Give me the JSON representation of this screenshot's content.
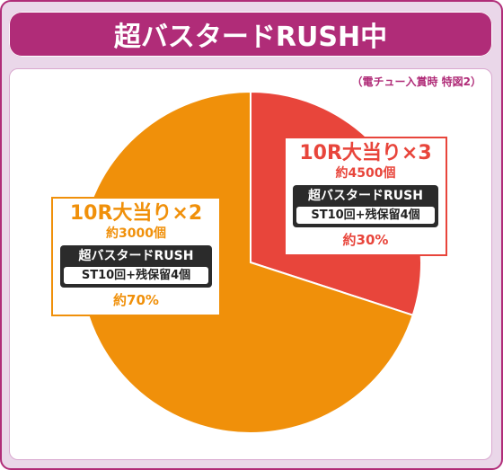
{
  "header": {
    "title": "超バスタードRUSH中",
    "note": "（電チュー入賞時 特図2）"
  },
  "chart_data": {
    "type": "pie",
    "title": "超バスタードRUSH中",
    "subtitle": "（電チュー入賞時 特図2）",
    "slices": [
      {
        "name": "10R大当り×3",
        "value": 30,
        "color": "#e8453b",
        "count_label": "約4500個",
        "mode_label": "超バスタードRUSH",
        "st_label": "ST10回+残保留4個",
        "percent_label": "約30%"
      },
      {
        "name": "10R大当り×2",
        "value": 70,
        "color": "#f0900a",
        "count_label": "約3000個",
        "mode_label": "超バスタードRUSH",
        "st_label": "ST10回+残保留4個",
        "percent_label": "約70%"
      }
    ]
  }
}
